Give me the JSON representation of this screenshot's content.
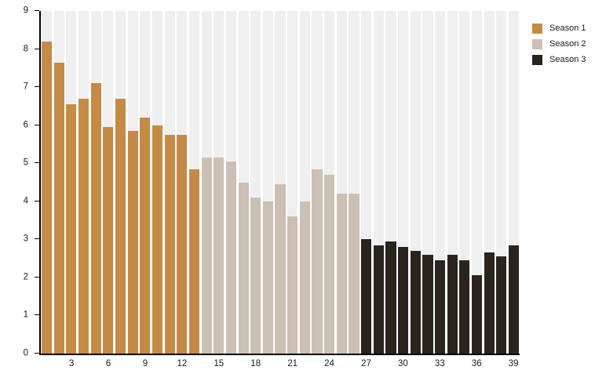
{
  "chart_data": {
    "type": "bar",
    "title": "",
    "xlabel": "",
    "ylabel": "",
    "ylim": [
      0,
      9
    ],
    "yticks": [
      0,
      1,
      2,
      3,
      4,
      5,
      6,
      7,
      8,
      9
    ],
    "xticks": [
      3,
      6,
      9,
      12,
      15,
      18,
      21,
      24,
      27,
      30,
      33,
      36,
      39
    ],
    "n_bars": 39,
    "grid": false,
    "legend_position": "top-right",
    "colors": {
      "stripe_background": "#EFEFEF",
      "axis": "#000000",
      "tick_text": "#1a1a1a"
    },
    "series": [
      {
        "name": "Season 1",
        "color": "#C58A45",
        "episode_start": 1,
        "values": [
          8.2,
          7.65,
          6.55,
          6.7,
          7.1,
          5.95,
          6.7,
          5.85,
          6.2,
          6.0,
          5.75,
          5.75,
          4.85
        ]
      },
      {
        "name": "Season 2",
        "color": "#CCBFB3",
        "episode_start": 14,
        "values": [
          5.15,
          5.15,
          5.05,
          4.5,
          4.1,
          4.0,
          4.45,
          3.6,
          4.0,
          4.85,
          4.7,
          4.2,
          4.2
        ]
      },
      {
        "name": "Season 3",
        "color": "#2A241D",
        "episode_start": 27,
        "values": [
          3.0,
          2.85,
          2.95,
          2.8,
          2.7,
          2.6,
          2.45,
          2.6,
          2.45,
          2.05,
          2.65,
          2.55,
          2.85
        ]
      }
    ]
  }
}
